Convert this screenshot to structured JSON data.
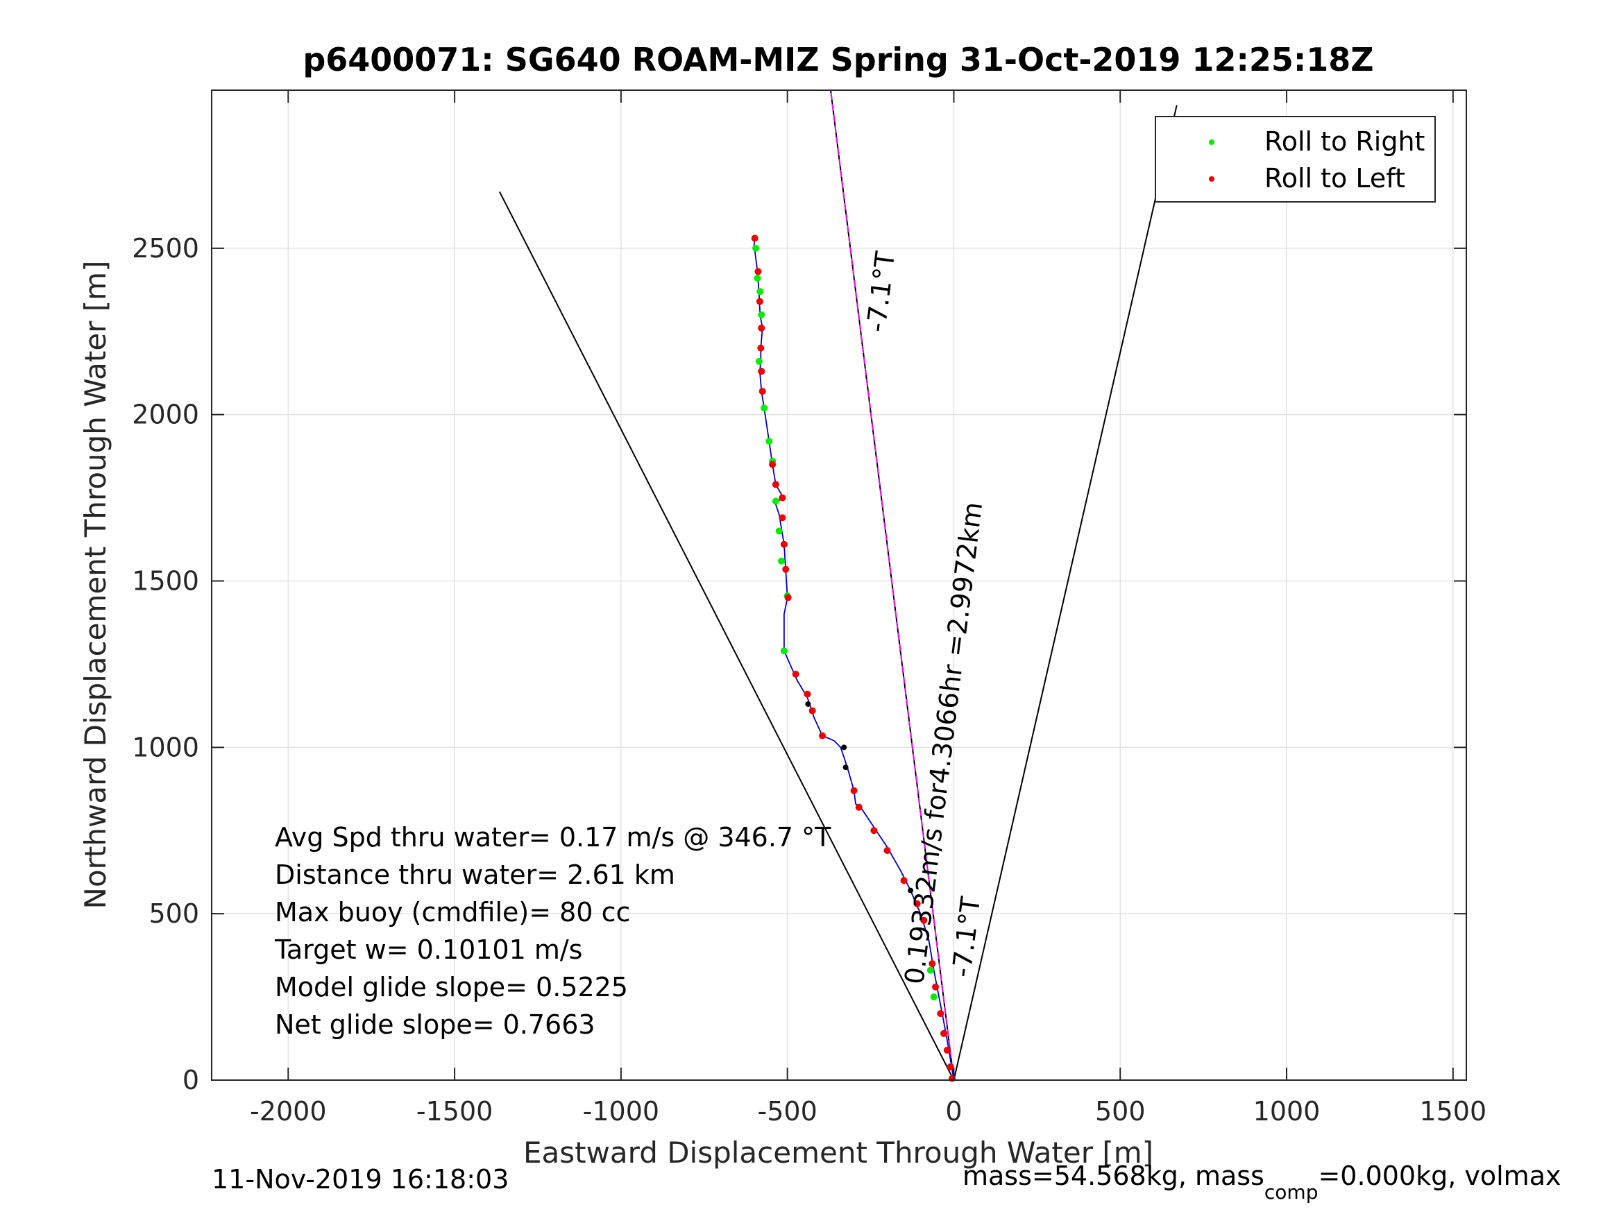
{
  "chart_data": {
    "type": "scatter",
    "title": "p6400071: SG640 ROAM-MIZ Spring 31-Oct-2019 12:25:18Z",
    "xlabel": "Eastward Displacement Through Water [m]",
    "ylabel": "Northward Displacement Through Water [m]",
    "xlim": [
      -2230,
      1540
    ],
    "ylim": [
      0,
      2975
    ],
    "xticks": [
      -2000,
      -1500,
      -1000,
      -500,
      0,
      500,
      1000,
      1500
    ],
    "yticks": [
      0,
      500,
      1000,
      1500,
      2000,
      2500
    ],
    "grid": true,
    "legend_position": "top-right",
    "legend": [
      {
        "label": "Roll to Right",
        "color": "#00ee00"
      },
      {
        "label": "Roll to Left",
        "color": "#ee0000"
      }
    ],
    "colors": {
      "track": "#0000cc",
      "heading_line": "#ff00ff",
      "roll_right": "#00ee00",
      "roll_left": "#ee0000",
      "other_point": "#000000"
    },
    "guide_lines": [
      {
        "name": "left-bound",
        "from": [
          0,
          0
        ],
        "to": [
          -1365,
          2670
        ]
      },
      {
        "name": "right-bound",
        "from": [
          0,
          0
        ],
        "to": [
          670,
          2930
        ]
      }
    ],
    "heading_line": {
      "from": [
        0,
        0
      ],
      "to": [
        -370,
        2975
      ]
    },
    "heading_labels": {
      "upper": "-7.1°T",
      "lower": "-7.1°T",
      "along": "0.19332m/s for4.3066hr =2.9972km"
    },
    "track": [
      [
        0,
        0
      ],
      [
        -10,
        60
      ],
      [
        -20,
        120
      ],
      [
        -35,
        200
      ],
      [
        -60,
        330
      ],
      [
        -75,
        420
      ],
      [
        -100,
        500
      ],
      [
        -130,
        570
      ],
      [
        -160,
        630
      ],
      [
        -200,
        700
      ],
      [
        -240,
        760
      ],
      [
        -280,
        820
      ],
      [
        -295,
        830
      ],
      [
        -300,
        870
      ],
      [
        -320,
        940
      ],
      [
        -340,
        1000
      ],
      [
        -360,
        1020
      ],
      [
        -395,
        1035
      ],
      [
        -420,
        1090
      ],
      [
        -440,
        1150
      ],
      [
        -470,
        1200
      ],
      [
        -510,
        1290
      ],
      [
        -510,
        1400
      ],
      [
        -500,
        1450
      ],
      [
        -505,
        1530
      ],
      [
        -510,
        1610
      ],
      [
        -525,
        1700
      ],
      [
        -535,
        1730
      ],
      [
        -515,
        1755
      ],
      [
        -535,
        1790
      ],
      [
        -545,
        1850
      ],
      [
        -555,
        1920
      ],
      [
        -570,
        2020
      ],
      [
        -578,
        2070
      ],
      [
        -583,
        2130
      ],
      [
        -580,
        2160
      ],
      [
        -580,
        2200
      ],
      [
        -575,
        2260
      ],
      [
        -582,
        2300
      ],
      [
        -585,
        2360
      ],
      [
        -590,
        2430
      ],
      [
        -600,
        2510
      ],
      [
        -597,
        2540
      ]
    ],
    "roll_right_points": [
      [
        -70,
        330
      ],
      [
        -60,
        250
      ],
      [
        -595,
        2500
      ],
      [
        -590,
        2410
      ],
      [
        -582,
        2370
      ],
      [
        -578,
        2300
      ],
      [
        -585,
        2160
      ],
      [
        -570,
        2020
      ],
      [
        -555,
        1920
      ],
      [
        -545,
        1860
      ],
      [
        -535,
        1740
      ],
      [
        -525,
        1650
      ],
      [
        -518,
        1560
      ],
      [
        -510,
        1290
      ],
      [
        -500,
        1455
      ]
    ],
    "roll_left_points": [
      [
        -5,
        5
      ],
      [
        -10,
        40
      ],
      [
        -20,
        90
      ],
      [
        -30,
        140
      ],
      [
        -40,
        200
      ],
      [
        -55,
        280
      ],
      [
        -65,
        350
      ],
      [
        -90,
        480
      ],
      [
        -110,
        530
      ],
      [
        -150,
        600
      ],
      [
        -200,
        690
      ],
      [
        -240,
        750
      ],
      [
        -285,
        820
      ],
      [
        -300,
        870
      ],
      [
        -395,
        1035
      ],
      [
        -425,
        1110
      ],
      [
        -440,
        1160
      ],
      [
        -475,
        1220
      ],
      [
        -498,
        1450
      ],
      [
        -505,
        1535
      ],
      [
        -510,
        1610
      ],
      [
        -515,
        1690
      ],
      [
        -515,
        1750
      ],
      [
        -535,
        1790
      ],
      [
        -545,
        1850
      ],
      [
        -575,
        2070
      ],
      [
        -578,
        2130
      ],
      [
        -580,
        2200
      ],
      [
        -578,
        2260
      ],
      [
        -583,
        2340
      ],
      [
        -588,
        2430
      ],
      [
        -598,
        2530
      ]
    ],
    "other_points": [
      [
        -325,
        940
      ],
      [
        -330,
        1000
      ],
      [
        -438,
        1130
      ],
      [
        -130,
        570
      ]
    ],
    "annotations": [
      "Avg Spd thru water=  0.17 m/s @ 346.7  °T",
      "Distance thru water=  2.61 km",
      "Max buoy (cmdfile)= 80 cc",
      "Target w= 0.10101 m/s",
      "Model glide slope= 0.5225",
      "Net glide slope= 0.7663"
    ],
    "footer_left": "11-Nov-2019 16:18:03",
    "footer_right_prefix": "mass=54.568kg, mass",
    "footer_right_sub": "comp",
    "footer_right_suffix": "=0.000kg, volmax"
  }
}
